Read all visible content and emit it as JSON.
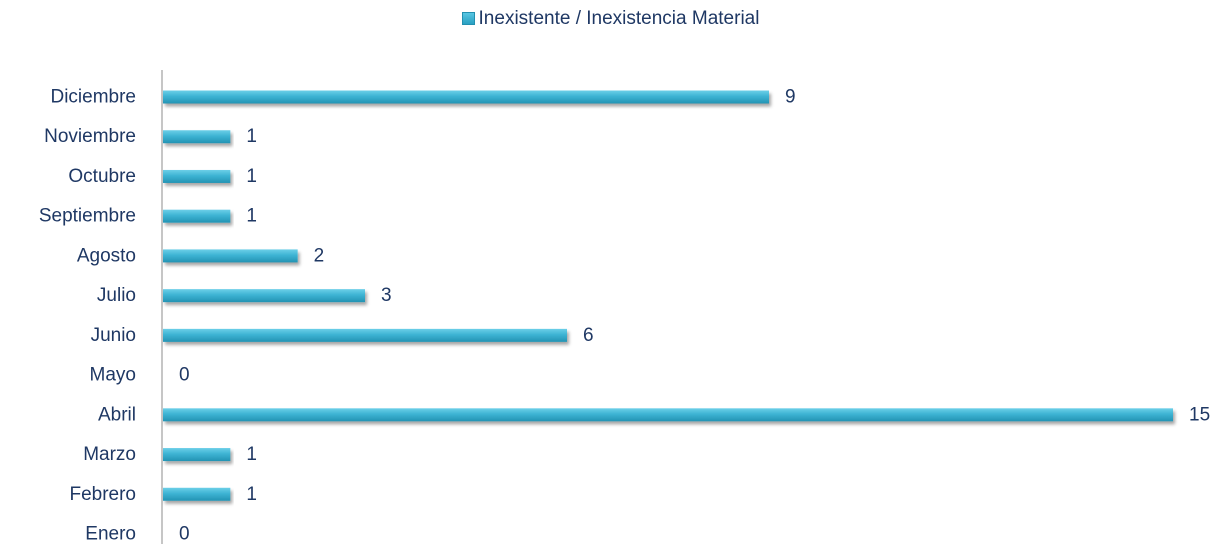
{
  "chart_data": {
    "type": "bar",
    "orientation": "horizontal",
    "categories": [
      "Enero",
      "Febrero",
      "Marzo",
      "Abril",
      "Mayo",
      "Junio",
      "Julio",
      "Agosto",
      "Septiembre",
      "Octubre",
      "Noviembre",
      "Diciembre"
    ],
    "series": [
      {
        "name": "Inexistente / Inexistencia Material",
        "values": [
          0,
          1,
          1,
          15,
          0,
          6,
          3,
          2,
          1,
          1,
          1,
          9
        ],
        "color": "#31a8c8"
      }
    ],
    "xlim": [
      0,
      15
    ],
    "grid": false,
    "legend_position": "top-center",
    "data_labels": true,
    "text_color": "#1f3864"
  }
}
